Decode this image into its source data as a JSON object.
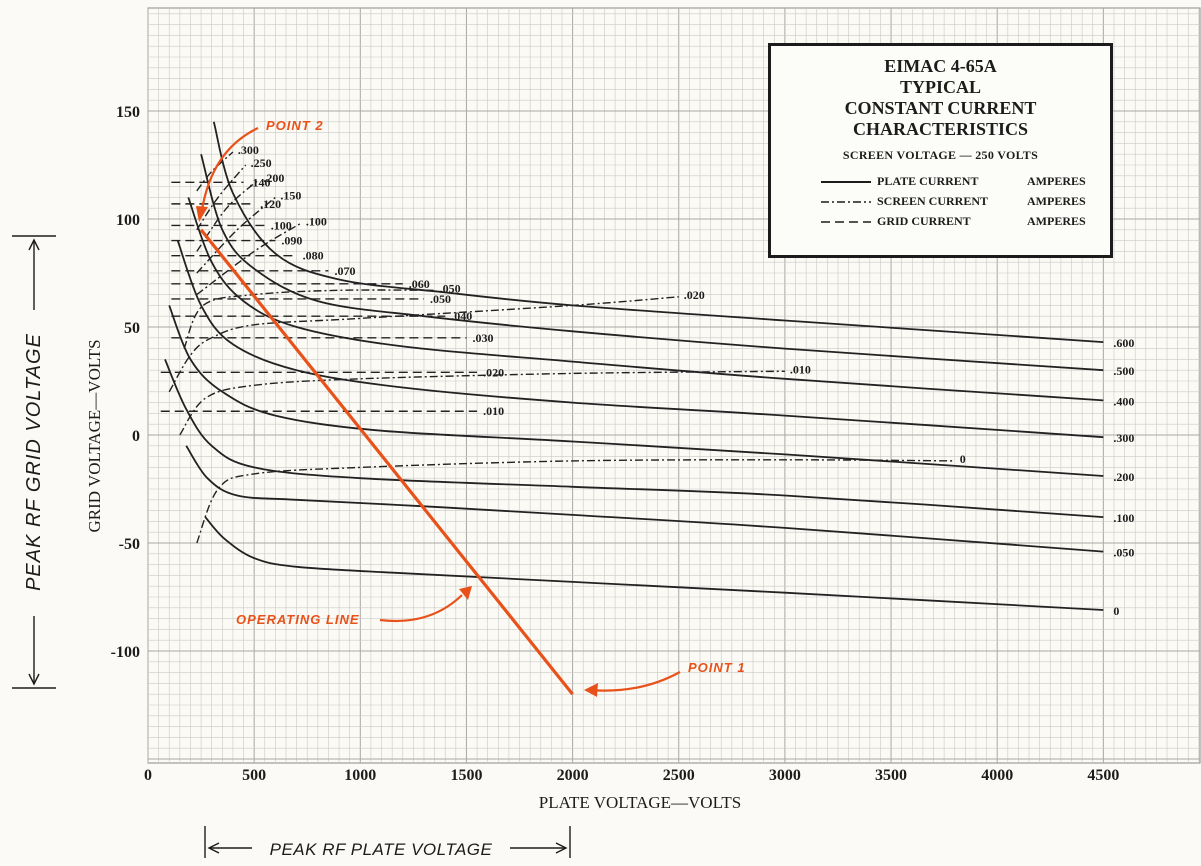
{
  "chart_data": {
    "type": "line",
    "title": "EIMAC 4-65A",
    "title_lines": [
      "EIMAC 4-65A",
      "TYPICAL",
      "CONSTANT CURRENT",
      "CHARACTERISTICS"
    ],
    "subtitle": "SCREEN VOLTAGE — 250 VOLTS",
    "xlabel": "PLATE VOLTAGE—VOLTS",
    "ylabel": "GRID VOLTAGE—VOLTS",
    "xlim": [
      0,
      4500
    ],
    "ylim": [
      -150,
      200
    ],
    "x_ticks": [
      "0",
      "500",
      "1000",
      "1500",
      "2000",
      "2500",
      "3000",
      "3500",
      "4000",
      "4500"
    ],
    "y_ticks": [
      "150",
      "100",
      "50",
      "0",
      "-50",
      "-100"
    ],
    "grid": true,
    "legend": [
      {
        "style": "solid",
        "label": "PLATE CURRENT",
        "unit": "AMPERES"
      },
      {
        "style": "dash-dot",
        "label": "SCREEN CURRENT",
        "unit": "AMPERES"
      },
      {
        "style": "dashed",
        "label": "GRID CURRENT",
        "unit": "AMPERES"
      }
    ],
    "legend_position": "top-right",
    "plate_current_series": [
      {
        "name": ".600",
        "points": [
          [
            310,
            145
          ],
          [
            400,
            112
          ],
          [
            600,
            84
          ],
          [
            900,
            72
          ],
          [
            1400,
            66
          ],
          [
            2000,
            60
          ],
          [
            3000,
            53
          ],
          [
            4500,
            43
          ]
        ]
      },
      {
        "name": ".500",
        "points": [
          [
            250,
            130
          ],
          [
            350,
            95
          ],
          [
            500,
            77
          ],
          [
            800,
            62
          ],
          [
            1300,
            55
          ],
          [
            2000,
            48
          ],
          [
            3000,
            40
          ],
          [
            4500,
            30
          ]
        ]
      },
      {
        "name": ".400",
        "points": [
          [
            190,
            110
          ],
          [
            300,
            80
          ],
          [
            450,
            62
          ],
          [
            700,
            50
          ],
          [
            1200,
            41
          ],
          [
            2000,
            34
          ],
          [
            3000,
            26
          ],
          [
            4500,
            16
          ]
        ]
      },
      {
        "name": ".300",
        "points": [
          [
            140,
            90
          ],
          [
            250,
            60
          ],
          [
            400,
            42
          ],
          [
            700,
            30
          ],
          [
            1200,
            22
          ],
          [
            2000,
            15
          ],
          [
            3000,
            9
          ],
          [
            4500,
            -1
          ]
        ]
      },
      {
        "name": ".200",
        "points": [
          [
            100,
            60
          ],
          [
            200,
            35
          ],
          [
            350,
            20
          ],
          [
            600,
            9
          ],
          [
            1100,
            2
          ],
          [
            2000,
            -3
          ],
          [
            3000,
            -9
          ],
          [
            4500,
            -19
          ]
        ]
      },
      {
        "name": ".100",
        "points": [
          [
            80,
            35
          ],
          [
            180,
            12
          ],
          [
            300,
            -5
          ],
          [
            500,
            -15
          ],
          [
            1000,
            -20
          ],
          [
            2000,
            -24
          ],
          [
            3000,
            -28
          ],
          [
            4500,
            -38
          ]
        ]
      },
      {
        "name": ".050",
        "points": [
          [
            180,
            -5
          ],
          [
            280,
            -20
          ],
          [
            420,
            -28
          ],
          [
            700,
            -30
          ],
          [
            1300,
            -33
          ],
          [
            2000,
            -37
          ],
          [
            3000,
            -43
          ],
          [
            4500,
            -54
          ]
        ]
      },
      {
        "name": "0",
        "points": [
          [
            270,
            -38
          ],
          [
            360,
            -48
          ],
          [
            500,
            -57
          ],
          [
            700,
            -61
          ],
          [
            1200,
            -64
          ],
          [
            2000,
            -68
          ],
          [
            3000,
            -73
          ],
          [
            4500,
            -81
          ]
        ]
      }
    ],
    "screen_current_series": [
      {
        "name": ".300",
        "points": [
          [
            230,
            113
          ],
          [
            300,
            122
          ],
          [
            400,
            131
          ]
        ]
      },
      {
        "name": ".250",
        "points": [
          [
            230,
            95
          ],
          [
            330,
            110
          ],
          [
            460,
            125
          ]
        ]
      },
      {
        "name": ".200",
        "points": [
          [
            230,
            85
          ],
          [
            370,
            105
          ],
          [
            520,
            118
          ]
        ]
      },
      {
        "name": ".150",
        "points": [
          [
            230,
            75
          ],
          [
            420,
            95
          ],
          [
            600,
            110
          ]
        ]
      },
      {
        "name": ".100",
        "points": [
          [
            230,
            65
          ],
          [
            500,
            85
          ],
          [
            720,
            98
          ]
        ]
      },
      {
        "name": ".050",
        "points": [
          [
            170,
            40
          ],
          [
            260,
            60
          ],
          [
            500,
            65
          ],
          [
            900,
            67
          ],
          [
            1350,
            67
          ]
        ]
      },
      {
        "name": ".020",
        "points": [
          [
            100,
            20
          ],
          [
            200,
            37
          ],
          [
            300,
            45
          ],
          [
            500,
            51
          ],
          [
            1000,
            54
          ],
          [
            2000,
            60
          ],
          [
            2500,
            64
          ]
        ]
      },
      {
        "name": ".010",
        "points": [
          [
            150,
            0
          ],
          [
            270,
            17
          ],
          [
            500,
            23
          ],
          [
            1000,
            26
          ],
          [
            2000,
            28.5
          ],
          [
            3000,
            29.5
          ]
        ]
      },
      {
        "name": "0",
        "points": [
          [
            230,
            -50
          ],
          [
            330,
            -25
          ],
          [
            500,
            -18
          ],
          [
            1000,
            -15
          ],
          [
            2000,
            -12
          ],
          [
            3000,
            -11.5
          ],
          [
            3800,
            -12
          ]
        ]
      }
    ],
    "grid_current_series": [
      {
        "name": ".140",
        "values": {
          "x": [
            110,
            450
          ],
          "y": 117
        }
      },
      {
        "name": ".120",
        "values": {
          "x": [
            110,
            500
          ],
          "y": 107
        }
      },
      {
        "name": ".100",
        "values": {
          "x": [
            110,
            550
          ],
          "y": 97
        }
      },
      {
        "name": ".090",
        "values": {
          "x": [
            110,
            600
          ],
          "y": 90
        }
      },
      {
        "name": ".080",
        "values": {
          "x": [
            110,
            700
          ],
          "y": 83
        }
      },
      {
        "name": ".070",
        "values": {
          "x": [
            110,
            850
          ],
          "y": 76
        }
      },
      {
        "name": ".060",
        "values": {
          "x": [
            110,
            1200
          ],
          "y": 70
        }
      },
      {
        "name": ".050",
        "values": {
          "x": [
            110,
            1300
          ],
          "y": 63
        }
      },
      {
        "name": ".040",
        "values": {
          "x": [
            110,
            1400
          ],
          "y": 55
        }
      },
      {
        "name": ".030",
        "values": {
          "x": [
            110,
            1500
          ],
          "y": 45
        }
      },
      {
        "name": ".020",
        "values": {
          "x": [
            60,
            1550
          ],
          "y": 29
        }
      },
      {
        "name": ".010",
        "values": {
          "x": [
            60,
            1550
          ],
          "y": 11
        }
      }
    ],
    "operating_line": {
      "points": [
        [
          250,
          95
        ],
        [
          2000,
          -120
        ]
      ]
    },
    "annotations": [
      "POINT 2",
      "POINT 1",
      "OPERATING LINE"
    ],
    "side_labels": {
      "left": "PEAK RF GRID VOLTAGE",
      "bottom": "PEAK RF PLATE VOLTAGE"
    },
    "colors": {
      "curves": "#222222",
      "annotation": "#e8521a",
      "grid_minor": "#c9c9c9",
      "grid_major": "#a8a8a8"
    }
  }
}
